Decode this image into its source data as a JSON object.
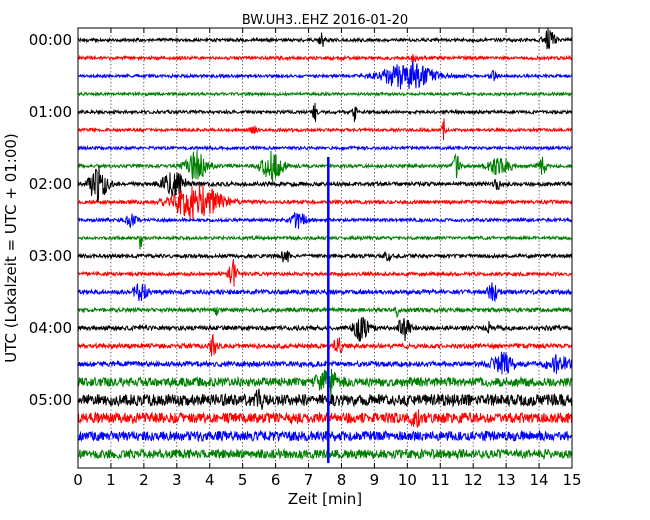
{
  "chart_data": {
    "type": "line",
    "title": "BW.UH3..EHZ 2016-01-20",
    "xlabel": "Zeit  [min]",
    "ylabel": "UTC (Lokalzeit = UTC + 01:00)",
    "xlim": [
      0,
      15
    ],
    "x_ticks": [
      "0",
      "1",
      "2",
      "3",
      "4",
      "5",
      "6",
      "7",
      "8",
      "9",
      "10",
      "11",
      "12",
      "13",
      "14",
      "15"
    ],
    "y_ticks": [
      "00:00",
      "01:00",
      "02:00",
      "03:00",
      "04:00",
      "05:00"
    ],
    "trace_count": 24,
    "color_cycle": [
      "#000000",
      "#ff0000",
      "#0000ff",
      "#008000"
    ],
    "grid": "vertical dotted lines at every minute",
    "noise": [
      1.6,
      1.6,
      1.5,
      1.4,
      1.6,
      1.5,
      1.5,
      1.6,
      2.0,
      1.8,
      1.6,
      1.5,
      1.8,
      1.7,
      2.2,
      2.0,
      2.2,
      2.3,
      2.6,
      4.5,
      5.8,
      5.2,
      4.8,
      4.5
    ],
    "events": [
      {
        "trace": 0,
        "t": 7.4,
        "amp": 7,
        "width": 0.15
      },
      {
        "trace": 0,
        "t": 14.3,
        "amp": 11,
        "width": 0.3
      },
      {
        "trace": 1,
        "t": 10.2,
        "amp": 4,
        "width": 0.2
      },
      {
        "trace": 2,
        "t": 10.0,
        "amp": 14,
        "width": 1.3
      },
      {
        "trace": 2,
        "t": 12.6,
        "amp": 5,
        "width": 0.2
      },
      {
        "trace": 4,
        "t": 7.2,
        "amp": 11,
        "width": 0.12
      },
      {
        "trace": 4,
        "t": 8.4,
        "amp": 9,
        "width": 0.12
      },
      {
        "trace": 5,
        "t": 11.1,
        "amp": 12,
        "width": 0.08
      },
      {
        "trace": 5,
        "t": 5.3,
        "amp": 5,
        "width": 0.2
      },
      {
        "trace": 7,
        "t": 3.6,
        "amp": 14,
        "width": 0.6
      },
      {
        "trace": 7,
        "t": 5.9,
        "amp": 14,
        "width": 0.6
      },
      {
        "trace": 7,
        "t": 11.5,
        "amp": 11,
        "width": 0.2
      },
      {
        "trace": 7,
        "t": 12.8,
        "amp": 10,
        "width": 0.6
      },
      {
        "trace": 7,
        "t": 14.1,
        "amp": 9,
        "width": 0.2
      },
      {
        "trace": 8,
        "t": 0.6,
        "amp": 16,
        "width": 0.5
      },
      {
        "trace": 8,
        "t": 2.9,
        "amp": 13,
        "width": 0.6
      },
      {
        "trace": 8,
        "t": 12.7,
        "amp": 8,
        "width": 0.15
      },
      {
        "trace": 9,
        "t": 3.6,
        "amp": 17,
        "width": 1.3
      },
      {
        "trace": 10,
        "t": 1.6,
        "amp": 6,
        "width": 0.3
      },
      {
        "trace": 10,
        "t": 6.7,
        "amp": 8,
        "width": 0.4
      },
      {
        "trace": 11,
        "t": 1.9,
        "amp": 12,
        "width": 0.08
      },
      {
        "trace": 12,
        "t": 6.3,
        "amp": 8,
        "width": 0.2
      },
      {
        "trace": 12,
        "t": 9.4,
        "amp": 5,
        "width": 0.2
      },
      {
        "trace": 13,
        "t": 4.7,
        "amp": 18,
        "width": 0.2
      },
      {
        "trace": 14,
        "t": 1.9,
        "amp": 8,
        "width": 0.4
      },
      {
        "trace": 14,
        "t": 12.6,
        "amp": 8,
        "width": 0.3
      },
      {
        "trace": 15,
        "t": 4.2,
        "amp": 6,
        "width": 0.08
      },
      {
        "trace": 15,
        "t": 9.7,
        "amp": 6,
        "width": 0.1
      },
      {
        "trace": 16,
        "t": 8.6,
        "amp": 12,
        "width": 0.4
      },
      {
        "trace": 16,
        "t": 9.9,
        "amp": 12,
        "width": 0.3
      },
      {
        "trace": 16,
        "t": 12.5,
        "amp": 7,
        "width": 0.1
      },
      {
        "trace": 17,
        "t": 4.1,
        "amp": 12,
        "width": 0.15
      },
      {
        "trace": 17,
        "t": 7.9,
        "amp": 10,
        "width": 0.2
      },
      {
        "trace": 18,
        "t": 12.9,
        "amp": 10,
        "width": 0.6
      },
      {
        "trace": 18,
        "t": 14.6,
        "amp": 8,
        "width": 0.6
      },
      {
        "trace": 19,
        "t": 7.6,
        "amp": 10,
        "width": 0.6
      },
      {
        "trace": 20,
        "t": 5.5,
        "amp": 9,
        "width": 0.2
      },
      {
        "trace": 21,
        "t": 10.3,
        "amp": 6,
        "width": 0.3
      }
    ],
    "spike": {
      "t": 7.6,
      "from_trace": 6.5,
      "to_trace": 23.5,
      "color": "#0000ff"
    }
  }
}
